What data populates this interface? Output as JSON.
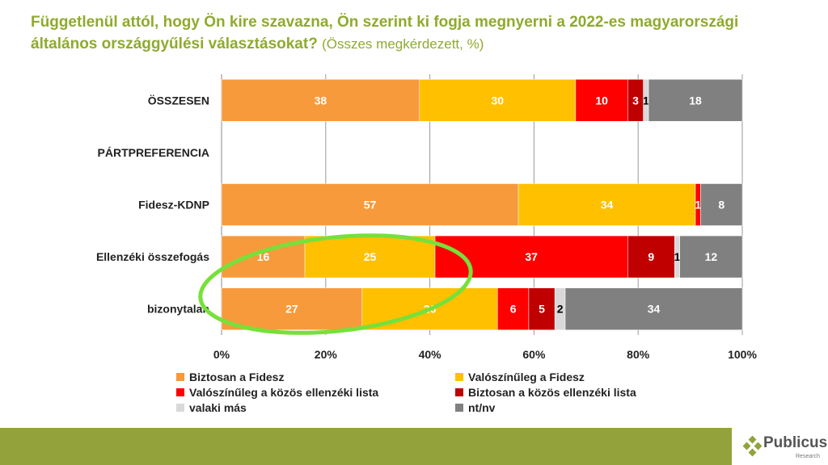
{
  "title": {
    "main": "Függetlenül attól, hogy Ön kire szavazna, Ön szerint ki fogja megnyerni a 2022-es magyarországi általános országgyűlési választásokat?",
    "sub": "(Összes megkérdezett, %)"
  },
  "chart_data": {
    "type": "bar",
    "stacked": true,
    "orientation": "horizontal",
    "categories": [
      "ÖSSZESEN",
      "PÁRTPREFERENCIA",
      "Fidesz-KDNP",
      "Ellenzéki összefogás",
      "bizonytalan"
    ],
    "series": [
      {
        "name": "Biztosan a Fidesz",
        "color": "#f79a3c",
        "label_color": "#ffffff",
        "values": [
          38,
          null,
          57,
          16,
          27
        ]
      },
      {
        "name": "Valószínűleg a Fidesz",
        "color": "#ffc000",
        "label_color": "#ffffff",
        "values": [
          30,
          null,
          34,
          25,
          26
        ]
      },
      {
        "name": "Valószínűleg a közös ellenzéki lista",
        "color": "#ff0000",
        "label_color": "#ffffff",
        "values": [
          10,
          null,
          1,
          37,
          6
        ]
      },
      {
        "name": "Biztosan a közös ellenzéki lista",
        "color": "#c00000",
        "label_color": "#ffffff",
        "values": [
          3,
          null,
          0,
          9,
          5
        ]
      },
      {
        "name": "valaki más",
        "color": "#d9d9d9",
        "label_color": "#000000",
        "values": [
          1,
          null,
          0,
          1,
          2
        ]
      },
      {
        "name": "nt/nv",
        "color": "#808080",
        "label_color": "#ffffff",
        "values": [
          18,
          null,
          8,
          12,
          34
        ]
      }
    ],
    "xticks": [
      "0%",
      "20%",
      "40%",
      "60%",
      "80%",
      "100%"
    ],
    "xlim": [
      0,
      100
    ],
    "grid": true,
    "legend_position": "bottom",
    "annotation": "green ellipse highlighting Fidesz shares for Ellenzéki összefogás and bizonytalan"
  },
  "logo": {
    "name": "Publicus",
    "sub": "Research"
  }
}
